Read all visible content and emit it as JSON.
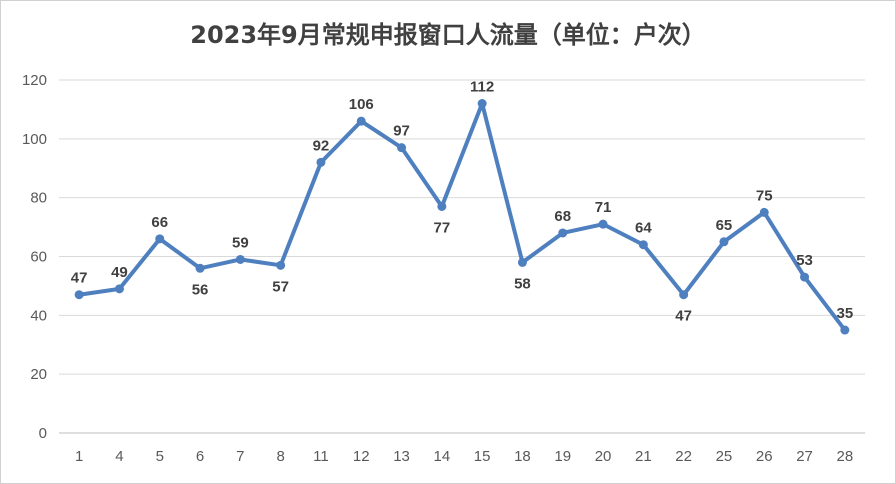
{
  "chart_data": {
    "type": "line",
    "title": "2023年9月常规申报窗口人流量（单位：户次）",
    "categories": [
      "1",
      "4",
      "5",
      "6",
      "7",
      "8",
      "11",
      "12",
      "13",
      "14",
      "15",
      "18",
      "19",
      "20",
      "21",
      "22",
      "25",
      "26",
      "27",
      "28"
    ],
    "series": [
      {
        "values": [
          47,
          49,
          66,
          56,
          59,
          57,
          92,
          106,
          97,
          77,
          112,
          58,
          68,
          71,
          64,
          47,
          65,
          75,
          53,
          35
        ]
      }
    ],
    "ylim": [
      0,
      120
    ],
    "yticks": [
      0,
      20,
      40,
      60,
      80,
      100,
      120
    ],
    "grid": true,
    "legend": "none",
    "line_color": "#4e7fbf",
    "grid_color": "#d9d9d9"
  }
}
